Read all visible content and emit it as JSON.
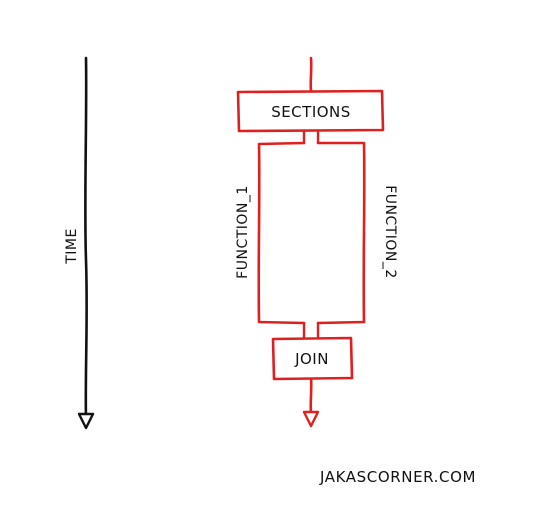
{
  "diagram": {
    "time_label": "TIME",
    "sections_label": "SECTIONS",
    "function_1_label": "FUNCTION_1",
    "function_2_label": "FUNCTION_2",
    "join_label": "JOIN",
    "footer_text": "JAKASCORNER.COM"
  },
  "colors": {
    "flow": "#e02020",
    "ink": "#111111",
    "background": "#ffffff"
  }
}
